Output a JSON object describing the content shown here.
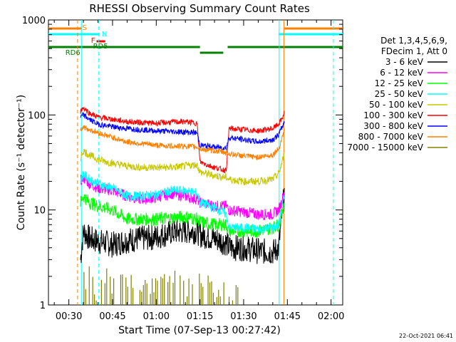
{
  "chart_data": {
    "type": "line",
    "title": "RHESSI Observing Summary Count Rates",
    "xlabel": "Start Time (07-Sep-13 00:27:42)",
    "ylabel": "Count Rate (s⁻¹ detector⁻¹)",
    "yscale": "log",
    "xlim": [
      23,
      124
    ],
    "ylim": [
      1,
      1000
    ],
    "x_ticks": [
      {
        "v": 30,
        "label": "00:30"
      },
      {
        "v": 45,
        "label": "00:45"
      },
      {
        "v": 60,
        "label": "01:00"
      },
      {
        "v": 75,
        "label": "01:15"
      },
      {
        "v": 90,
        "label": "01:30"
      },
      {
        "v": 105,
        "label": "01:45"
      },
      {
        "v": 120,
        "label": "02:00"
      }
    ],
    "y_ticks": [
      {
        "v": 1,
        "label": "1"
      },
      {
        "v": 10,
        "label": "10"
      },
      {
        "v": 100,
        "label": "100"
      },
      {
        "v": 1000,
        "label": "1000"
      }
    ],
    "legend": {
      "position": "right",
      "header": [
        "Det 1,3,4,5,6,9,",
        "FDecim 1, Att 0"
      ],
      "entries": [
        {
          "label": "3 - 6 keV",
          "color": "#000000"
        },
        {
          "label": "6 - 12 keV",
          "color": "#ff00ff"
        },
        {
          "label": "12 - 25 keV",
          "color": "#00ff00"
        },
        {
          "label": "25 - 50 keV",
          "color": "#00ffff"
        },
        {
          "label": "50 - 100 keV",
          "color": "#c8c800"
        },
        {
          "label": "100 - 300 keV",
          "color": "#ff0000"
        },
        {
          "label": "300 - 800 keV",
          "color": "#0000ff"
        },
        {
          "label": "800 - 7000 keV",
          "color": "#ff8000"
        },
        {
          "label": "7000 - 15000 keV",
          "color": "#808000"
        }
      ]
    },
    "series": [
      {
        "name": "3 - 6 keV",
        "color": "#000000",
        "values": [
          [
            34,
            3
          ],
          [
            35,
            6
          ],
          [
            37,
            5
          ],
          [
            39,
            4.8
          ],
          [
            41,
            4.6
          ],
          [
            43,
            4.5
          ],
          [
            45,
            4.3
          ],
          [
            50,
            4.8
          ],
          [
            55,
            5
          ],
          [
            60,
            5.2
          ],
          [
            65,
            5.8
          ],
          [
            70,
            6
          ],
          [
            74,
            6
          ],
          [
            75,
            5.5
          ],
          [
            80,
            5
          ],
          [
            84,
            4.5
          ],
          [
            85,
            4
          ],
          [
            90,
            4
          ],
          [
            95,
            3.7
          ],
          [
            100,
            3.6
          ],
          [
            102,
            4
          ],
          [
            103,
            8
          ],
          [
            104,
            16
          ]
        ]
      },
      {
        "name": "6 - 12 keV",
        "color": "#ff00ff",
        "values": [
          [
            34,
            20
          ],
          [
            35,
            22
          ],
          [
            37,
            19
          ],
          [
            40,
            17
          ],
          [
            45,
            16
          ],
          [
            50,
            14
          ],
          [
            55,
            13
          ],
          [
            60,
            13.5
          ],
          [
            65,
            15
          ],
          [
            70,
            14
          ],
          [
            74,
            13
          ],
          [
            75,
            12
          ],
          [
            80,
            11
          ],
          [
            84,
            11
          ],
          [
            85,
            10
          ],
          [
            90,
            9.5
          ],
          [
            95,
            9
          ],
          [
            100,
            9
          ],
          [
            102,
            10
          ],
          [
            103,
            12
          ],
          [
            104,
            16
          ]
        ]
      },
      {
        "name": "12 - 25 keV",
        "color": "#00ff00",
        "values": [
          [
            34,
            12
          ],
          [
            35,
            14
          ],
          [
            37,
            12
          ],
          [
            40,
            11
          ],
          [
            45,
            10
          ],
          [
            50,
            8
          ],
          [
            55,
            8
          ],
          [
            60,
            8
          ],
          [
            65,
            8.2
          ],
          [
            70,
            8.5
          ],
          [
            74,
            8
          ],
          [
            75,
            7.5
          ],
          [
            80,
            7
          ],
          [
            84,
            7
          ],
          [
            85,
            6
          ],
          [
            90,
            6
          ],
          [
            95,
            6
          ],
          [
            100,
            6.5
          ],
          [
            102,
            7
          ],
          [
            103,
            9
          ],
          [
            104,
            12
          ]
        ]
      },
      {
        "name": "25 - 50 keV",
        "color": "#00ffff",
        "values": [
          [
            34,
            20
          ],
          [
            35,
            24
          ],
          [
            37,
            21
          ],
          [
            40,
            19
          ],
          [
            45,
            17
          ],
          [
            50,
            14
          ],
          [
            55,
            14
          ],
          [
            60,
            14.5
          ],
          [
            65,
            16
          ],
          [
            70,
            16
          ],
          [
            74,
            15
          ],
          [
            75,
            12
          ],
          [
            80,
            10.5
          ],
          [
            84,
            9
          ],
          [
            85,
            6.5
          ],
          [
            90,
            6.5
          ],
          [
            95,
            6.3
          ],
          [
            100,
            6.5
          ],
          [
            102,
            7
          ],
          [
            103,
            10
          ],
          [
            104,
            14
          ]
        ]
      },
      {
        "name": "50 - 100 keV",
        "color": "#c8c800",
        "values": [
          [
            34,
            35
          ],
          [
            35,
            42
          ],
          [
            37,
            38
          ],
          [
            40,
            34
          ],
          [
            45,
            31
          ],
          [
            50,
            29
          ],
          [
            55,
            28
          ],
          [
            60,
            28
          ],
          [
            65,
            28
          ],
          [
            70,
            29
          ],
          [
            74,
            30
          ],
          [
            75,
            25
          ],
          [
            80,
            23
          ],
          [
            84,
            22
          ],
          [
            85,
            21
          ],
          [
            90,
            20
          ],
          [
            95,
            20
          ],
          [
            100,
            21
          ],
          [
            102,
            24
          ],
          [
            103,
            30
          ],
          [
            104,
            40
          ]
        ]
      },
      {
        "name": "100 - 300 keV",
        "color": "#ff0000",
        "values": [
          [
            34,
            110
          ],
          [
            35,
            120
          ],
          [
            37,
            105
          ],
          [
            40,
            95
          ],
          [
            45,
            90
          ],
          [
            50,
            85
          ],
          [
            55,
            83
          ],
          [
            60,
            82
          ],
          [
            65,
            84
          ],
          [
            70,
            85
          ],
          [
            74,
            82
          ],
          [
            75,
            32
          ],
          [
            80,
            28
          ],
          [
            84,
            26
          ],
          [
            85,
            72
          ],
          [
            90,
            70
          ],
          [
            95,
            68
          ],
          [
            100,
            72
          ],
          [
            102,
            80
          ],
          [
            103,
            90
          ],
          [
            104,
            105
          ]
        ]
      },
      {
        "name": "300 - 800 keV",
        "color": "#0000ff",
        "values": [
          [
            34,
            95
          ],
          [
            35,
            100
          ],
          [
            37,
            90
          ],
          [
            40,
            80
          ],
          [
            45,
            75
          ],
          [
            50,
            72
          ],
          [
            55,
            70
          ],
          [
            60,
            68
          ],
          [
            65,
            67
          ],
          [
            70,
            66
          ],
          [
            74,
            65
          ],
          [
            75,
            48
          ],
          [
            80,
            46
          ],
          [
            84,
            45
          ],
          [
            85,
            58
          ],
          [
            90,
            55
          ],
          [
            95,
            52
          ],
          [
            100,
            55
          ],
          [
            102,
            62
          ],
          [
            103,
            72
          ],
          [
            104,
            85
          ]
        ]
      },
      {
        "name": "800 - 7000 keV",
        "color": "#ff8000",
        "values": [
          [
            34,
            70
          ],
          [
            35,
            75
          ],
          [
            37,
            70
          ],
          [
            40,
            65
          ],
          [
            45,
            58
          ],
          [
            50,
            52
          ],
          [
            55,
            50
          ],
          [
            60,
            48
          ],
          [
            65,
            47
          ],
          [
            70,
            47
          ],
          [
            74,
            46
          ],
          [
            75,
            44
          ],
          [
            80,
            42
          ],
          [
            84,
            40
          ],
          [
            85,
            39
          ],
          [
            90,
            37
          ],
          [
            95,
            36
          ],
          [
            100,
            38
          ],
          [
            102,
            44
          ],
          [
            103,
            55
          ],
          [
            104,
            70
          ]
        ]
      },
      {
        "name": "7000 - 15000 keV",
        "color": "#808000",
        "values": [
          [
            34,
            1.5
          ],
          [
            35,
            2
          ],
          [
            36,
            1.3
          ],
          [
            37,
            2
          ],
          [
            38,
            1.5
          ],
          [
            40,
            1.2
          ],
          [
            43,
            1.8
          ],
          [
            45,
            1.4
          ],
          [
            50,
            1.7
          ],
          [
            55,
            1.6
          ],
          [
            60,
            1.5
          ],
          [
            65,
            2
          ],
          [
            70,
            1.3
          ],
          [
            74,
            2
          ],
          [
            76,
            1.7
          ],
          [
            80,
            1.4
          ],
          [
            84,
            1.3
          ],
          [
            88,
            1.2
          ]
        ]
      }
    ],
    "annotations": {
      "S": {
        "label": "S",
        "color": "#ff8000"
      },
      "N": {
        "label": "N",
        "color": "#00ffff"
      },
      "F": {
        "label": "F",
        "color": "#ff0000"
      },
      "RD5": {
        "label": "RD5",
        "color": "#008000"
      },
      "RD6": {
        "label": "RD6",
        "color": "#008000"
      },
      "saa": [
        {
          "start": 23,
          "end": 34.5
        },
        {
          "start": 104,
          "end": 124
        }
      ],
      "night": [
        {
          "start": 23,
          "end": 40.5
        },
        {
          "start": 102,
          "end": 124
        }
      ],
      "flare": [
        {
          "start": 39.5,
          "end": 42.5
        }
      ],
      "decim_lines": [
        {
          "start": 23,
          "end": 75
        },
        {
          "start": 75,
          "end": 83
        },
        {
          "start": 84.5,
          "end": 124
        }
      ],
      "vlines": [
        {
          "x": 33,
          "color": "#ff8000",
          "dashed": true
        },
        {
          "x": 34.3,
          "color": "#00ffff",
          "dashed": false
        },
        {
          "x": 40.3,
          "color": "#00ffff",
          "dashed": true
        },
        {
          "x": 102.2,
          "color": "#00ffff",
          "dashed": false
        },
        {
          "x": 103.8,
          "color": "#ff8000",
          "dashed": false
        },
        {
          "x": 120.8,
          "color": "#00ffff",
          "dashed": true
        }
      ]
    }
  },
  "footer_date": "22-Oct-2021 06:41"
}
